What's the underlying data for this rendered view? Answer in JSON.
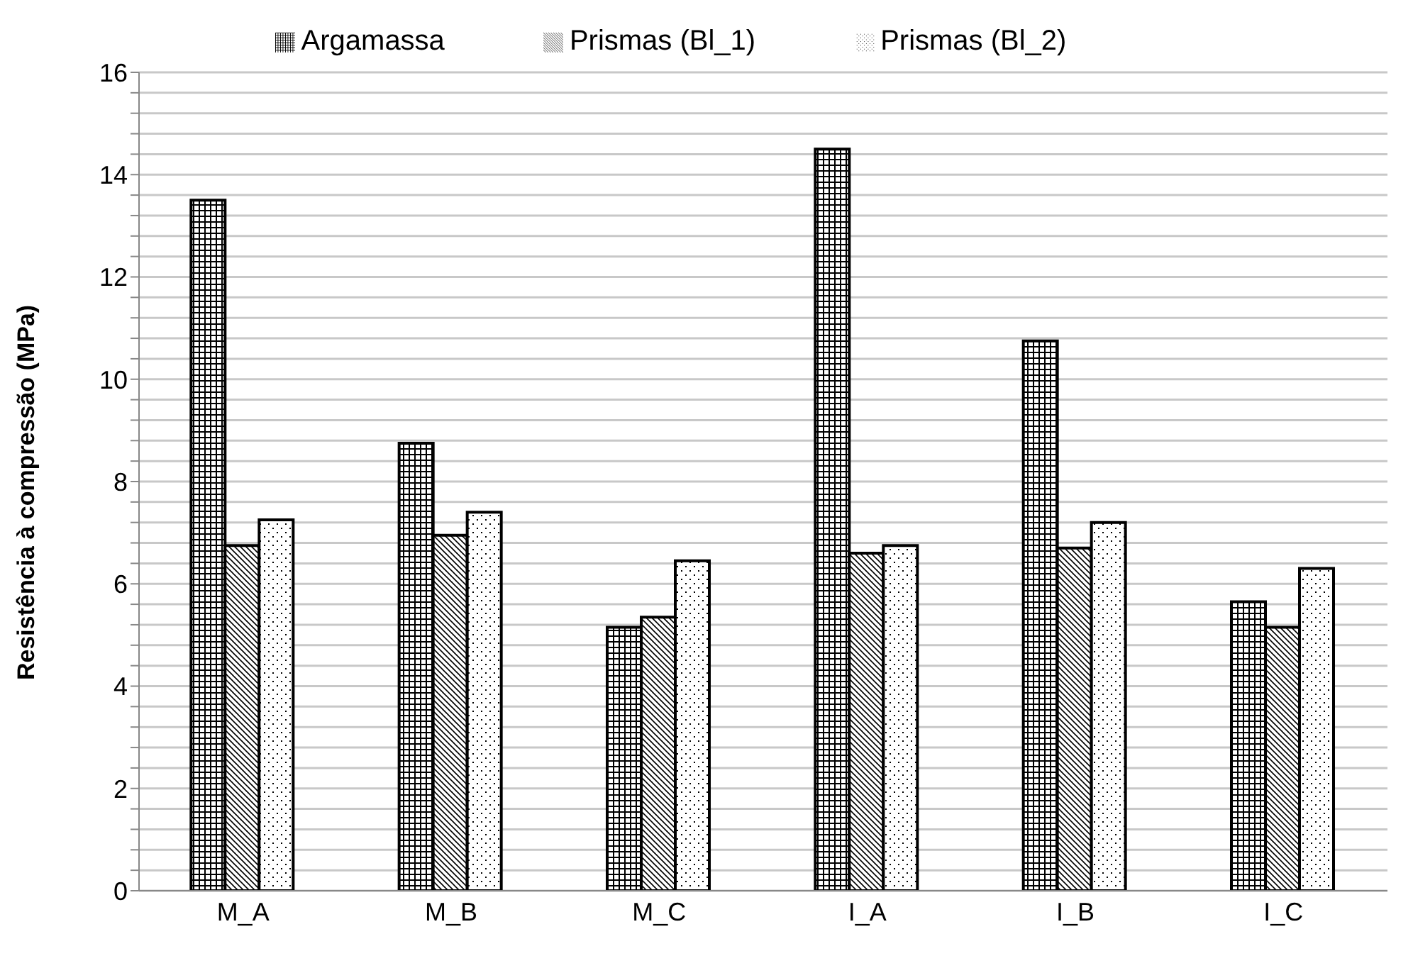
{
  "chart_data": {
    "type": "bar",
    "ylabel": "Resistência à compressão (MPa)",
    "categories": [
      "M_A",
      "M_B",
      "M_C",
      "I_A",
      "I_B",
      "I_C"
    ],
    "series": [
      {
        "name": "Argamassa",
        "color": "#000000",
        "values": [
          13.5,
          8.75,
          5.15,
          14.5,
          10.75,
          5.65
        ]
      },
      {
        "name": "Prismas (Bl_1)",
        "color": "#000000",
        "values": [
          6.75,
          6.95,
          5.35,
          6.6,
          6.7,
          5.15
        ]
      },
      {
        "name": "Prismas (Bl_2)",
        "color": "#000000",
        "values": [
          7.25,
          7.4,
          6.45,
          6.75,
          7.2,
          6.3
        ]
      }
    ],
    "ylim": [
      0,
      16
    ],
    "yticks": [
      0,
      {
        "value": 0.4,
        "label": null
      },
      {
        "value": 0.8,
        "label": null
      },
      {
        "value": 1.2,
        "label": null
      },
      {
        "value": 1.6,
        "label": null
      },
      2,
      {
        "value": 2.4,
        "label": null
      },
      {
        "value": 2.8,
        "label": null
      },
      {
        "value": 3.2,
        "label": null
      },
      {
        "value": 3.6,
        "label": null
      },
      4,
      {
        "value": 4.4,
        "label": null
      },
      {
        "value": 4.8,
        "label": null
      },
      {
        "value": 5.2,
        "label": null
      },
      {
        "value": 5.6,
        "label": null
      },
      6,
      {
        "value": 6.4,
        "label": null
      },
      {
        "value": 6.8,
        "label": null
      },
      {
        "value": 7.2,
        "label": null
      },
      {
        "value": 7.6,
        "label": null
      },
      8,
      {
        "value": 8.4,
        "label": null
      },
      {
        "value": 8.8,
        "label": null
      },
      {
        "value": 9.2,
        "label": null
      },
      {
        "value": 9.6,
        "label": null
      },
      10,
      {
        "value": 10.4,
        "label": null
      },
      {
        "value": 10.8,
        "label": null
      },
      {
        "value": 11.2,
        "label": null
      },
      {
        "value": 11.6,
        "label": null
      },
      12,
      {
        "value": 12.4,
        "label": null
      },
      {
        "value": 12.8,
        "label": null
      },
      {
        "value": 13.2,
        "label": null
      },
      {
        "value": 13.6,
        "label": null
      },
      14,
      {
        "value": 14.4,
        "label": null
      },
      {
        "value": 14.8,
        "label": null
      },
      {
        "value": 15.2,
        "label": null
      },
      {
        "value": 15.6,
        "label": null
      },
      16
    ],
    "grid": "y",
    "legend": "top"
  }
}
